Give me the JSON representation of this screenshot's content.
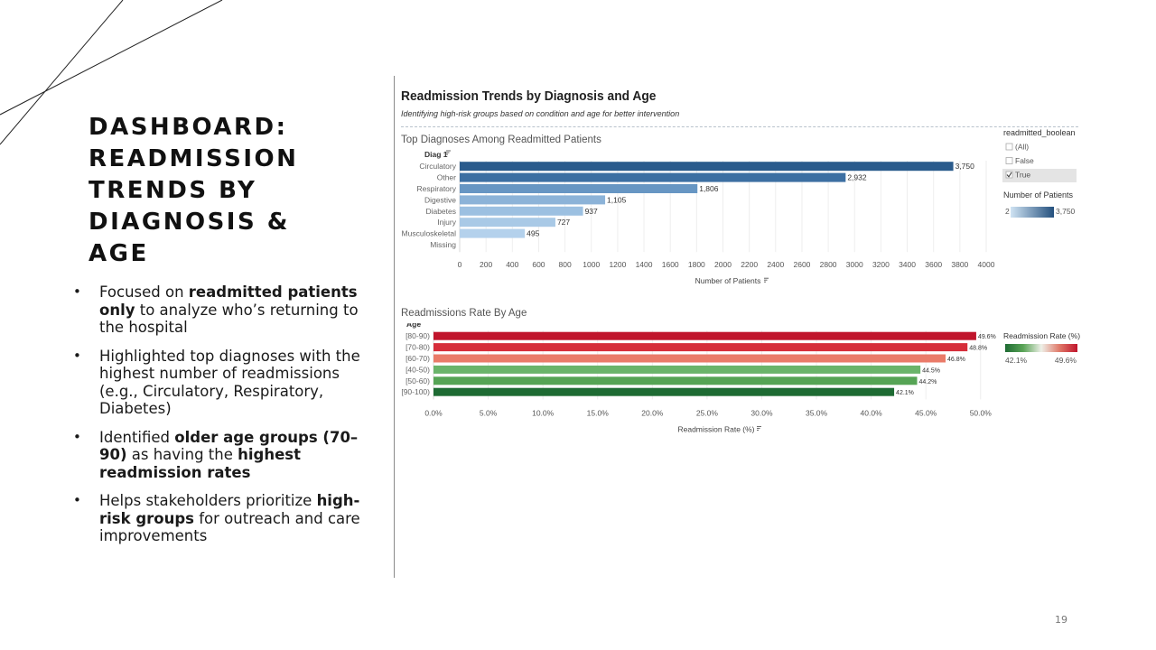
{
  "slide": {
    "title_lines": [
      "DASHBOARD:",
      "READMISSION",
      "TRENDS BY",
      "DIAGNOSIS & AGE"
    ],
    "bullets": [
      {
        "parts": [
          {
            "t": "Focused on ",
            "b": false
          },
          {
            "t": "readmitted patients only",
            "b": true
          },
          {
            "t": " to analyze who’s returning to the hospital",
            "b": false
          }
        ]
      },
      {
        "parts": [
          {
            "t": "Highlighted top diagnoses with the highest number of readmissions (e.g., Circulatory, Respiratory, Diabetes)",
            "b": false
          }
        ]
      },
      {
        "parts": [
          {
            "t": "Identified ",
            "b": false
          },
          {
            "t": "older age groups (70–90)",
            "b": true
          },
          {
            "t": " as having the ",
            "b": false
          },
          {
            "t": "highest readmission rates",
            "b": true
          }
        ]
      },
      {
        "parts": [
          {
            "t": "Helps stakeholders prioritize ",
            "b": false
          },
          {
            "t": "high-risk groups",
            "b": true
          },
          {
            "t": " for outreach and care improvements",
            "b": false
          }
        ]
      }
    ],
    "bullet_glyph": "•",
    "page_number": "19"
  },
  "dashboard": {
    "title": "Readmission Trends by Diagnosis and Age",
    "subtitle": "Identifying high-risk groups based on condition and age for better intervention",
    "filter": {
      "title": "readmitted_boolean",
      "options": [
        {
          "label": "(All)",
          "checked": false
        },
        {
          "label": "False",
          "checked": false
        },
        {
          "label": "True",
          "checked": true
        }
      ]
    },
    "patients_legend": {
      "title": "Number of Patients",
      "min_label": "2",
      "max_label": "3,750",
      "color_low": "#cfe3f3",
      "color_high": "#24507e"
    },
    "rate_legend": {
      "title": "Readmission Rate (%)",
      "min_label": "42.1%",
      "max_label": "49.6%",
      "colors": [
        "#1e6b33",
        "#5aa457",
        "#eef0e8",
        "#e07a6a",
        "#c0152c"
      ]
    }
  },
  "chart_data": [
    {
      "type": "bar",
      "orientation": "horizontal",
      "title": "Top Diagnoses Among Readmitted Patients",
      "category_label": "Diag 1",
      "categories": [
        "Circulatory",
        "Other",
        "Respiratory",
        "Digestive",
        "Diabetes",
        "Injury",
        "Musculoskeletal",
        "Missing"
      ],
      "values": [
        3750,
        2932,
        1806,
        1105,
        937,
        727,
        495,
        null
      ],
      "value_labels": [
        "3,750",
        "2,932",
        "1,806",
        "1,105",
        "937",
        "727",
        "495",
        ""
      ],
      "colors": [
        "#2a5b8c",
        "#3c6fa2",
        "#6796c3",
        "#8cb3d8",
        "#9cc0e1",
        "#a9c9e6",
        "#b4d1ec",
        "#c8dff2"
      ],
      "xlabel": "Number of Patients",
      "xlim": [
        0,
        4000
      ],
      "ticks": [
        0,
        200,
        400,
        600,
        800,
        1000,
        1200,
        1400,
        1600,
        1800,
        2000,
        2200,
        2400,
        2600,
        2800,
        3000,
        3200,
        3400,
        3600,
        3800,
        4000
      ],
      "grid": true
    },
    {
      "type": "bar",
      "orientation": "horizontal",
      "title": "Readmissions Rate By Age",
      "category_label": "Age",
      "categories": [
        "[80-90)",
        "[70-80)",
        "[60-70)",
        "[40-50)",
        "[50-60)",
        "[90-100)"
      ],
      "values": [
        49.6,
        48.8,
        46.8,
        44.5,
        44.2,
        42.1
      ],
      "value_labels": [
        "49.6%",
        "48.8%",
        "46.8%",
        "44.5%",
        "44.2%",
        "42.1%"
      ],
      "colors": [
        "#c0152c",
        "#d62d3a",
        "#ea7b69",
        "#6ab46a",
        "#56a455",
        "#1e6b33"
      ],
      "xlabel": "Readmission Rate (%)",
      "xlim": [
        0,
        52
      ],
      "ticks": [
        0,
        5,
        10,
        15,
        20,
        25,
        30,
        35,
        40,
        45,
        50
      ],
      "tick_labels": [
        "0.0%",
        "5.0%",
        "10.0%",
        "15.0%",
        "20.0%",
        "25.0%",
        "30.0%",
        "35.0%",
        "40.0%",
        "45.0%",
        "50.0%"
      ],
      "grid": true
    }
  ]
}
